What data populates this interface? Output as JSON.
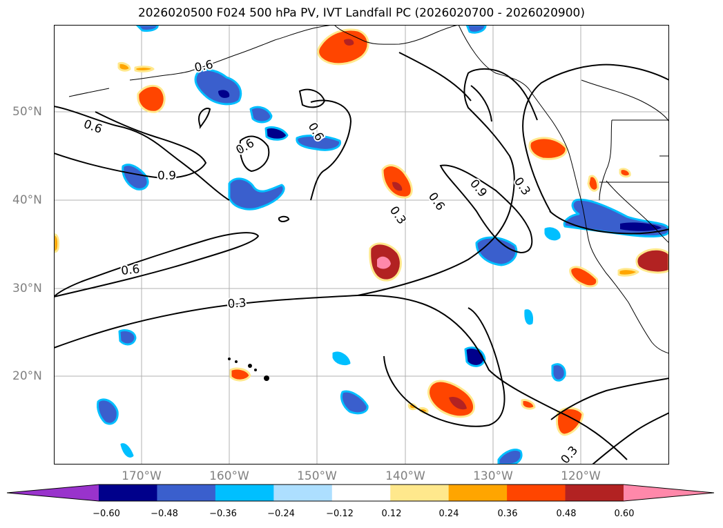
{
  "title": "2026020500 F024 500 hPa PV, IVT Landfall PC (2026020700 - 2026020900)",
  "latitude_labels": [
    "50°N",
    "40°N",
    "30°N",
    "20°N"
  ],
  "longitude_labels": [
    "170°W",
    "160°W",
    "150°W",
    "140°W",
    "130°W",
    "120°W"
  ],
  "contour_labels": [
    "0.6",
    "0.6",
    "0.6",
    "0.6",
    "0.9",
    "0.6",
    "0.9",
    "0.3",
    "0.6",
    "0.3",
    "0.3",
    "0.3"
  ],
  "colorbar": {
    "ticks": [
      "−0.60",
      "−0.48",
      "−0.36",
      "−0.24",
      "−0.12",
      "0.12",
      "0.24",
      "0.36",
      "0.48",
      "0.60"
    ],
    "colors": [
      "#9933cc",
      "#00008b",
      "#3a5fcd",
      "#00bfff",
      "#addfff",
      "#ffffff",
      "#ffe88c",
      "#ffa500",
      "#ff4500",
      "#b22222",
      "#ff88aa"
    ]
  },
  "shading_colors": {
    "neg_light": "#addfff",
    "neg_mid": "#00bfff",
    "neg_blue": "#3a5fcd",
    "neg_dark": "#00008b",
    "pos_light": "#ffe88c",
    "pos_mid": "#ffa500",
    "pos_red": "#ff4500",
    "pos_dark": "#b22222",
    "pos_pink": "#ff88aa"
  }
}
